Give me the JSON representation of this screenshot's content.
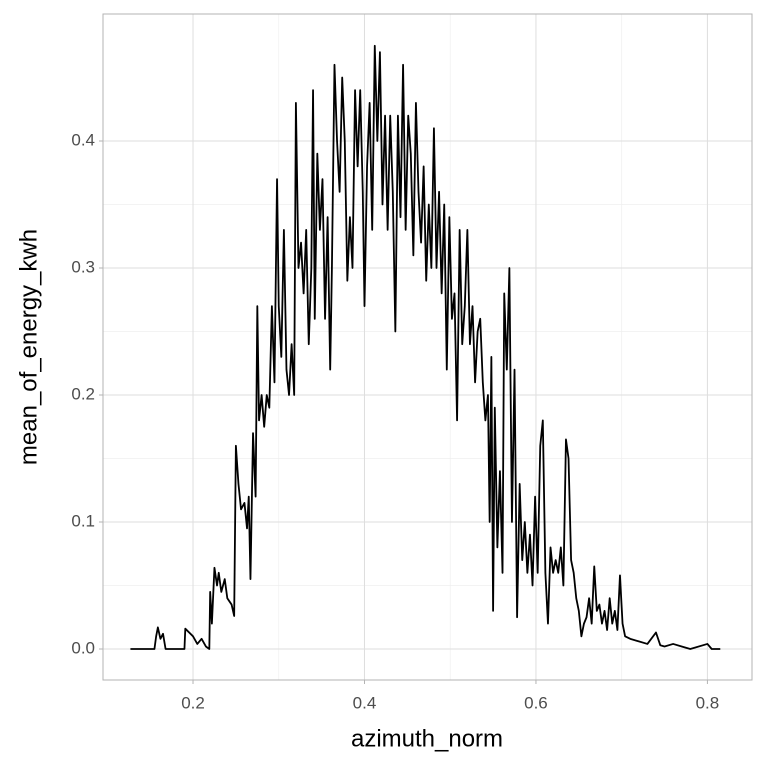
{
  "chart_data": {
    "type": "line",
    "xlabel": "azimuth_norm",
    "ylabel": "mean_of_energy_kwh",
    "color": "#000000",
    "grid": true,
    "xlim": [
      0.095,
      0.852
    ],
    "ylim": [
      -0.0244,
      0.5
    ],
    "xticks": [
      0.2,
      0.4,
      0.6,
      0.8
    ],
    "yticks": [
      {
        "value": 0,
        "label": "0.0"
      },
      0.1,
      0.2,
      0.3,
      0.4
    ],
    "x": [
      0.127,
      0.155,
      0.157,
      0.159,
      0.162,
      0.165,
      0.168,
      0.19,
      0.191,
      0.2,
      0.205,
      0.21,
      0.215,
      0.219,
      0.22,
      0.222,
      0.225,
      0.228,
      0.23,
      0.233,
      0.237,
      0.24,
      0.245,
      0.248,
      0.25,
      0.253,
      0.256,
      0.26,
      0.263,
      0.265,
      0.267,
      0.27,
      0.273,
      0.275,
      0.277,
      0.28,
      0.283,
      0.286,
      0.289,
      0.292,
      0.295,
      0.298,
      0.3,
      0.303,
      0.306,
      0.309,
      0.312,
      0.315,
      0.318,
      0.32,
      0.323,
      0.326,
      0.329,
      0.332,
      0.335,
      0.338,
      0.34,
      0.342,
      0.345,
      0.348,
      0.351,
      0.354,
      0.357,
      0.36,
      0.362,
      0.365,
      0.368,
      0.371,
      0.374,
      0.377,
      0.38,
      0.383,
      0.386,
      0.389,
      0.392,
      0.395,
      0.398,
      0.4,
      0.403,
      0.406,
      0.409,
      0.412,
      0.415,
      0.418,
      0.421,
      0.424,
      0.427,
      0.43,
      0.433,
      0.436,
      0.439,
      0.442,
      0.445,
      0.448,
      0.451,
      0.454,
      0.457,
      0.46,
      0.463,
      0.466,
      0.469,
      0.472,
      0.475,
      0.478,
      0.481,
      0.484,
      0.487,
      0.49,
      0.493,
      0.496,
      0.499,
      0.502,
      0.505,
      0.508,
      0.511,
      0.514,
      0.517,
      0.52,
      0.523,
      0.526,
      0.529,
      0.532,
      0.535,
      0.538,
      0.541,
      0.544,
      0.546,
      0.548,
      0.55,
      0.552,
      0.555,
      0.558,
      0.561,
      0.563,
      0.566,
      0.569,
      0.572,
      0.575,
      0.578,
      0.581,
      0.584,
      0.587,
      0.59,
      0.593,
      0.596,
      0.599,
      0.602,
      0.605,
      0.608,
      0.611,
      0.614,
      0.617,
      0.62,
      0.623,
      0.626,
      0.629,
      0.632,
      0.635,
      0.638,
      0.641,
      0.644,
      0.647,
      0.65,
      0.653,
      0.656,
      0.659,
      0.662,
      0.665,
      0.668,
      0.671,
      0.674,
      0.677,
      0.68,
      0.683,
      0.686,
      0.689,
      0.692,
      0.695,
      0.698,
      0.701,
      0.704,
      0.71,
      0.72,
      0.73,
      0.74,
      0.745,
      0.75,
      0.76,
      0.77,
      0.78,
      0.8,
      0.805,
      0.815
    ],
    "values": [
      0,
      0,
      0.01,
      0.017,
      0.008,
      0.012,
      0,
      0,
      0.016,
      0.01,
      0.004,
      0.008,
      0.002,
      0,
      0.045,
      0.02,
      0.064,
      0.05,
      0.06,
      0.045,
      0.055,
      0.04,
      0.035,
      0.026,
      0.16,
      0.13,
      0.11,
      0.115,
      0.095,
      0.12,
      0.055,
      0.17,
      0.12,
      0.27,
      0.18,
      0.2,
      0.175,
      0.2,
      0.19,
      0.27,
      0.21,
      0.37,
      0.27,
      0.23,
      0.33,
      0.22,
      0.2,
      0.24,
      0.2,
      0.43,
      0.3,
      0.32,
      0.28,
      0.33,
      0.24,
      0.3,
      0.44,
      0.26,
      0.39,
      0.33,
      0.37,
      0.26,
      0.34,
      0.22,
      0.3,
      0.46,
      0.4,
      0.36,
      0.45,
      0.4,
      0.29,
      0.34,
      0.3,
      0.44,
      0.38,
      0.44,
      0.36,
      0.27,
      0.38,
      0.43,
      0.33,
      0.475,
      0.4,
      0.47,
      0.35,
      0.42,
      0.33,
      0.42,
      0.36,
      0.25,
      0.42,
      0.34,
      0.46,
      0.33,
      0.42,
      0.39,
      0.31,
      0.43,
      0.36,
      0.32,
      0.38,
      0.29,
      0.35,
      0.3,
      0.41,
      0.3,
      0.36,
      0.28,
      0.35,
      0.22,
      0.34,
      0.26,
      0.28,
      0.18,
      0.33,
      0.24,
      0.27,
      0.33,
      0.24,
      0.27,
      0.21,
      0.25,
      0.26,
      0.21,
      0.18,
      0.2,
      0.1,
      0.23,
      0.03,
      0.19,
      0.08,
      0.14,
      0.06,
      0.28,
      0.22,
      0.3,
      0.1,
      0.22,
      0.025,
      0.13,
      0.07,
      0.1,
      0.06,
      0.09,
      0.05,
      0.12,
      0.06,
      0.16,
      0.18,
      0.06,
      0.02,
      0.08,
      0.06,
      0.07,
      0.06,
      0.08,
      0.05,
      0.165,
      0.15,
      0.07,
      0.06,
      0.04,
      0.03,
      0.01,
      0.02,
      0.025,
      0.04,
      0.02,
      0.065,
      0.03,
      0.035,
      0.02,
      0.03,
      0.015,
      0.04,
      0.02,
      0.03,
      0.015,
      0.058,
      0.02,
      0.01,
      0.008,
      0.006,
      0.004,
      0.013,
      0.003,
      0.002,
      0.004,
      0.002,
      0,
      0.004,
      0,
      0
    ]
  }
}
